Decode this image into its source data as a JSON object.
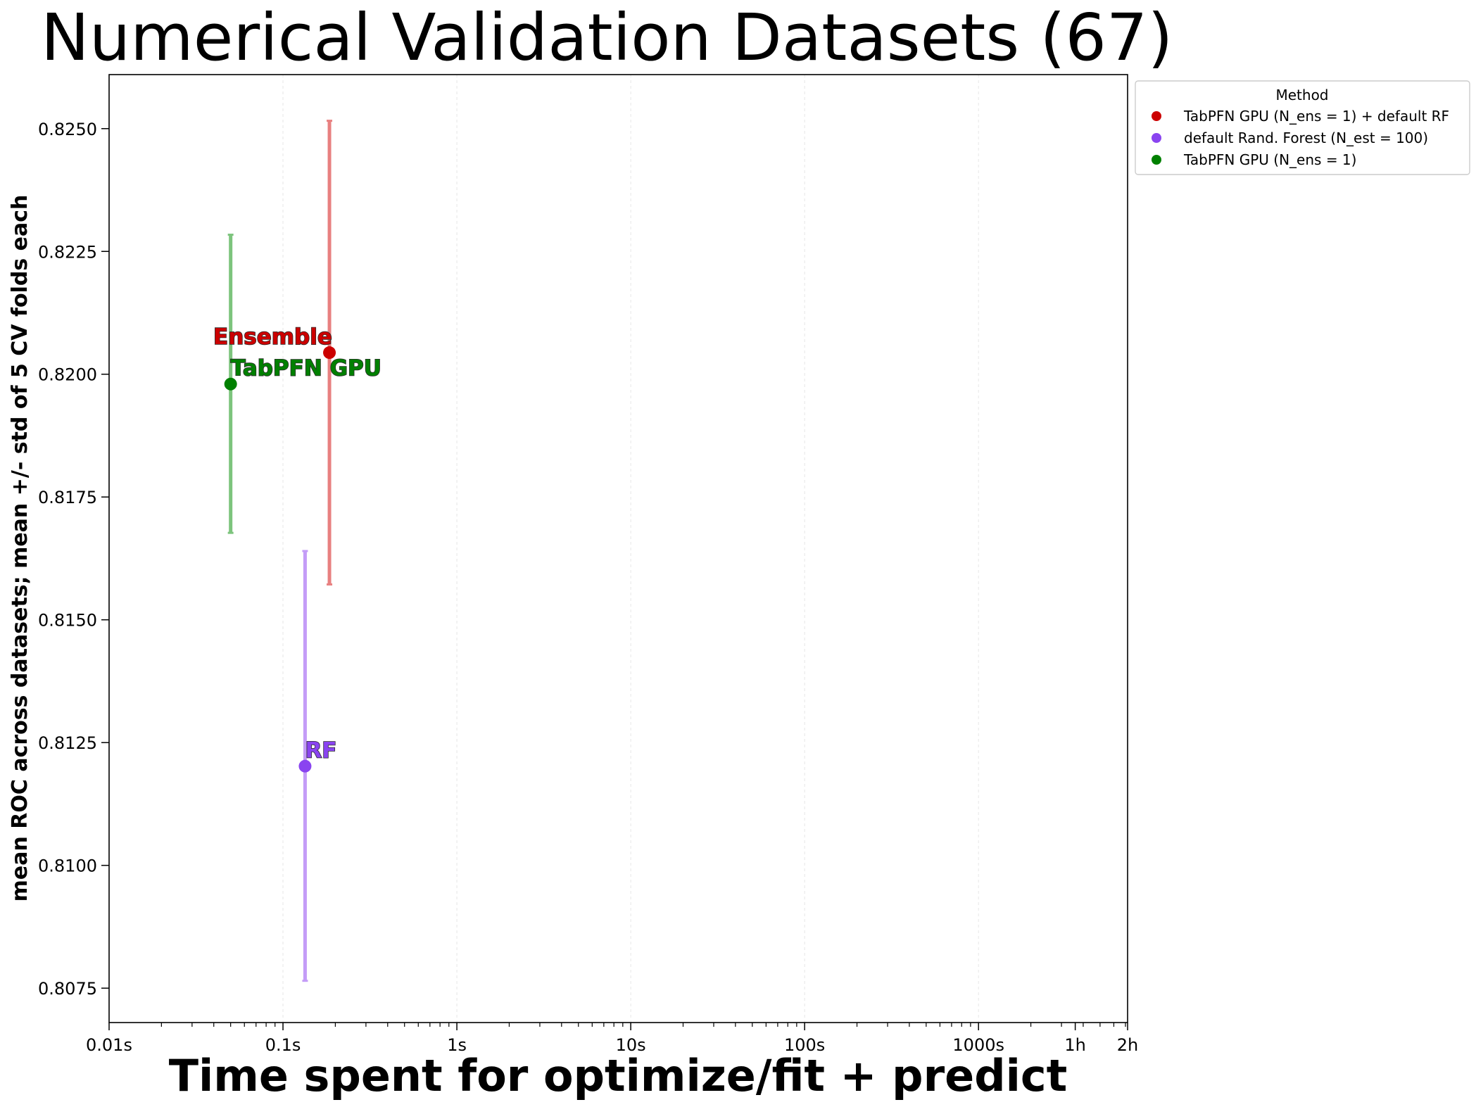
{
  "chart_data": {
    "type": "scatter",
    "title": "Numerical Validation Datasets (67)",
    "xlabel": "Time spent for optimize/fit + predict",
    "ylabel": "mean ROC across datasets; mean +/- std of 5 CV folds each",
    "x_scale": "log",
    "xlim": [
      0.01,
      7200
    ],
    "ylim": [
      0.8068,
      0.8261
    ],
    "x_ticks": [
      {
        "value": 0.01,
        "label": "0.01s"
      },
      {
        "value": 0.1,
        "label": "0.1s"
      },
      {
        "value": 1,
        "label": "1s"
      },
      {
        "value": 10,
        "label": "10s"
      },
      {
        "value": 100,
        "label": "100s"
      },
      {
        "value": 1000,
        "label": "1000s"
      },
      {
        "value": 3600,
        "label": "1h"
      },
      {
        "value": 7200,
        "label": "2h"
      }
    ],
    "y_ticks": [
      {
        "value": 0.8075,
        "label": "0.8075"
      },
      {
        "value": 0.81,
        "label": "0.8100"
      },
      {
        "value": 0.8125,
        "label": "0.8125"
      },
      {
        "value": 0.815,
        "label": "0.8150"
      },
      {
        "value": 0.8175,
        "label": "0.8175"
      },
      {
        "value": 0.82,
        "label": "0.8200"
      },
      {
        "value": 0.8225,
        "label": "0.8225"
      },
      {
        "value": 0.825,
        "label": "0.8250"
      }
    ],
    "grid": "vertical dashed, faint",
    "legend": {
      "title": "Method",
      "placement": "outside top-right"
    },
    "series": [
      {
        "name": "TabPFN GPU (N_ens =  1) + default RF",
        "color": "#cc0000",
        "errorbar_color": "#e88080",
        "x": 0.185,
        "y": 0.82044,
        "ymin": 0.81572,
        "ymax": 0.82516,
        "annotation": "Ensemble"
      },
      {
        "name": "default Rand. Forest (N_est = 100)",
        "color": "#8a44f0",
        "errorbar_color": "#c49cf7",
        "x": 0.134,
        "y": 0.81202,
        "ymin": 0.80765,
        "ymax": 0.8164,
        "annotation": "RF"
      },
      {
        "name": "TabPFN GPU (N_ens =  1)",
        "color": "#008000",
        "errorbar_color": "#7dc47d",
        "x": 0.05,
        "y": 0.8198,
        "ymin": 0.81677,
        "ymax": 0.82284,
        "annotation": "TabPFN GPU"
      }
    ]
  }
}
